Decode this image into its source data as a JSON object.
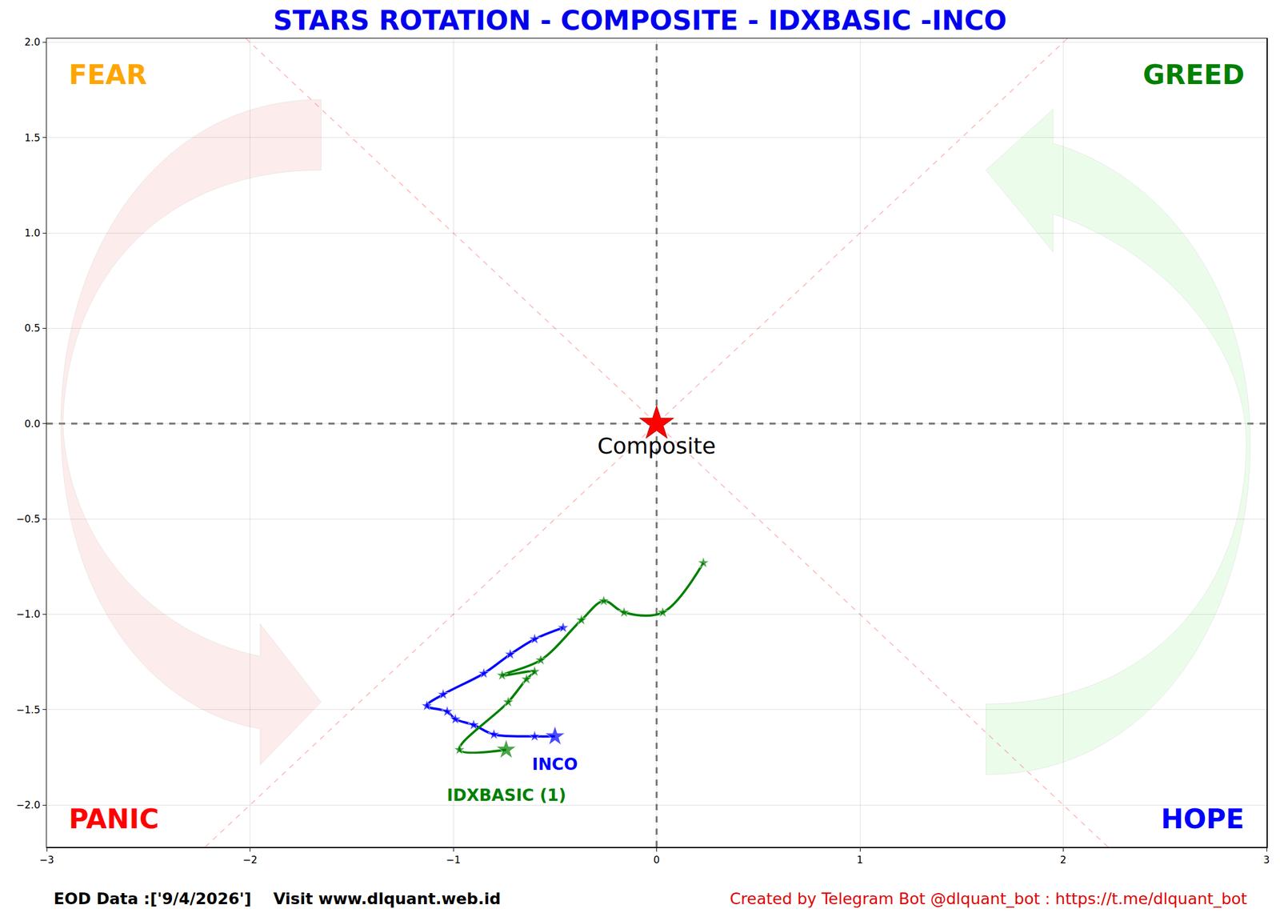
{
  "chart_data": {
    "type": "line",
    "title": "STARS ROTATION - COMPOSITE - IDXBASIC -INCO",
    "xlim": [
      -3,
      3
    ],
    "ylim": [
      -2.22,
      2.02
    ],
    "xticks": [
      {
        "value": -3,
        "label": "−3"
      },
      {
        "value": -2,
        "label": "−2"
      },
      {
        "value": -1,
        "label": "−1"
      },
      0,
      1,
      2,
      3
    ],
    "yticks": [
      {
        "value": -2,
        "label": "−2.0"
      },
      {
        "value": -1.5,
        "label": "−1.5"
      },
      {
        "value": -1,
        "label": "−1.0"
      },
      {
        "value": -0.5,
        "label": "−0.5"
      },
      {
        "value": 0,
        "label": "0.0"
      },
      {
        "value": 0.5,
        "label": "0.5"
      },
      {
        "value": 1,
        "label": "1.0"
      },
      {
        "value": 1.5,
        "label": "1.5"
      },
      {
        "value": 2,
        "label": "2.0"
      }
    ],
    "grid": true,
    "marker": "star",
    "line_style": "spline",
    "series": [
      {
        "name": "INCO",
        "color": "#0000ff",
        "x": [
          -0.46,
          -0.6,
          -0.72,
          -0.85,
          -1.05,
          -1.13,
          -1.03,
          -0.99,
          -0.9,
          -0.8,
          -0.6,
          -0.5
        ],
        "values": [
          -1.07,
          -1.13,
          -1.21,
          -1.31,
          -1.42,
          -1.48,
          -1.51,
          -1.55,
          -1.58,
          -1.63,
          -1.64,
          -1.64
        ]
      },
      {
        "name": "IDXBASIC (1)",
        "color": "#008000",
        "x": [
          0.23,
          0.03,
          -0.16,
          -0.26,
          -0.37,
          -0.57,
          -0.76,
          -0.6,
          -0.64,
          -0.73,
          -0.97,
          -0.74
        ],
        "values": [
          -0.73,
          -0.99,
          -0.99,
          -0.93,
          -1.03,
          -1.24,
          -1.32,
          -1.3,
          -1.34,
          -1.46,
          -1.71,
          -1.71
        ]
      }
    ],
    "benchmark": {
      "name": "Composite",
      "color": "#ff0000",
      "x": 0,
      "y": 0
    },
    "quadrant_labels": [
      {
        "text": "FEAR",
        "color": "#ffa500"
      },
      {
        "text": "GREED",
        "color": "#008000"
      },
      {
        "text": "PANIC",
        "color": "#ff0000"
      },
      {
        "text": "HOPE",
        "color": "#0000ff"
      }
    ],
    "footer": {
      "left": "EOD Data :['9/4/2026']    Visit www.dlquant.web.id",
      "right": "Created by Telegram Bot @dlquant_bot : https://t.me/dlquant_bot"
    }
  }
}
